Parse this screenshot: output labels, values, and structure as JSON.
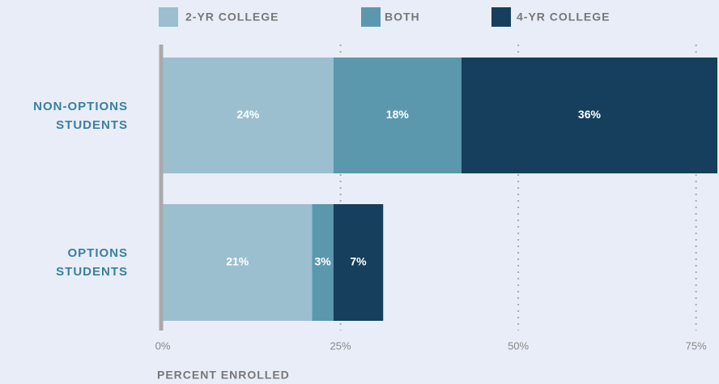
{
  "chart_data": {
    "type": "stacked-bar-horizontal",
    "categories": [
      "NON-OPTIONS STUDENTS",
      "OPTIONS STUDENTS"
    ],
    "series": [
      {
        "name": "2-YR COLLEGE",
        "color": "#9bbfcf",
        "values": [
          24,
          21
        ],
        "value_labels": [
          "24%",
          "21%"
        ]
      },
      {
        "name": "BOTH",
        "color": "#5b98ad",
        "values": [
          18,
          3
        ],
        "value_labels": [
          "18%",
          "3%"
        ]
      },
      {
        "name": "4-YR COLLEGE",
        "color": "#153f5c",
        "values": [
          36,
          7
        ],
        "value_labels": [
          "36%",
          "7%"
        ]
      }
    ],
    "x_label": "PERCENT ENROLLED",
    "xlim": [
      0,
      78
    ],
    "xticks": [
      {
        "value": 0,
        "label": "0%"
      },
      {
        "value": 25,
        "label": "25%"
      },
      {
        "value": 50,
        "label": "50%"
      },
      {
        "value": 75,
        "label": "75%"
      }
    ],
    "grid": true,
    "legend": "top"
  }
}
